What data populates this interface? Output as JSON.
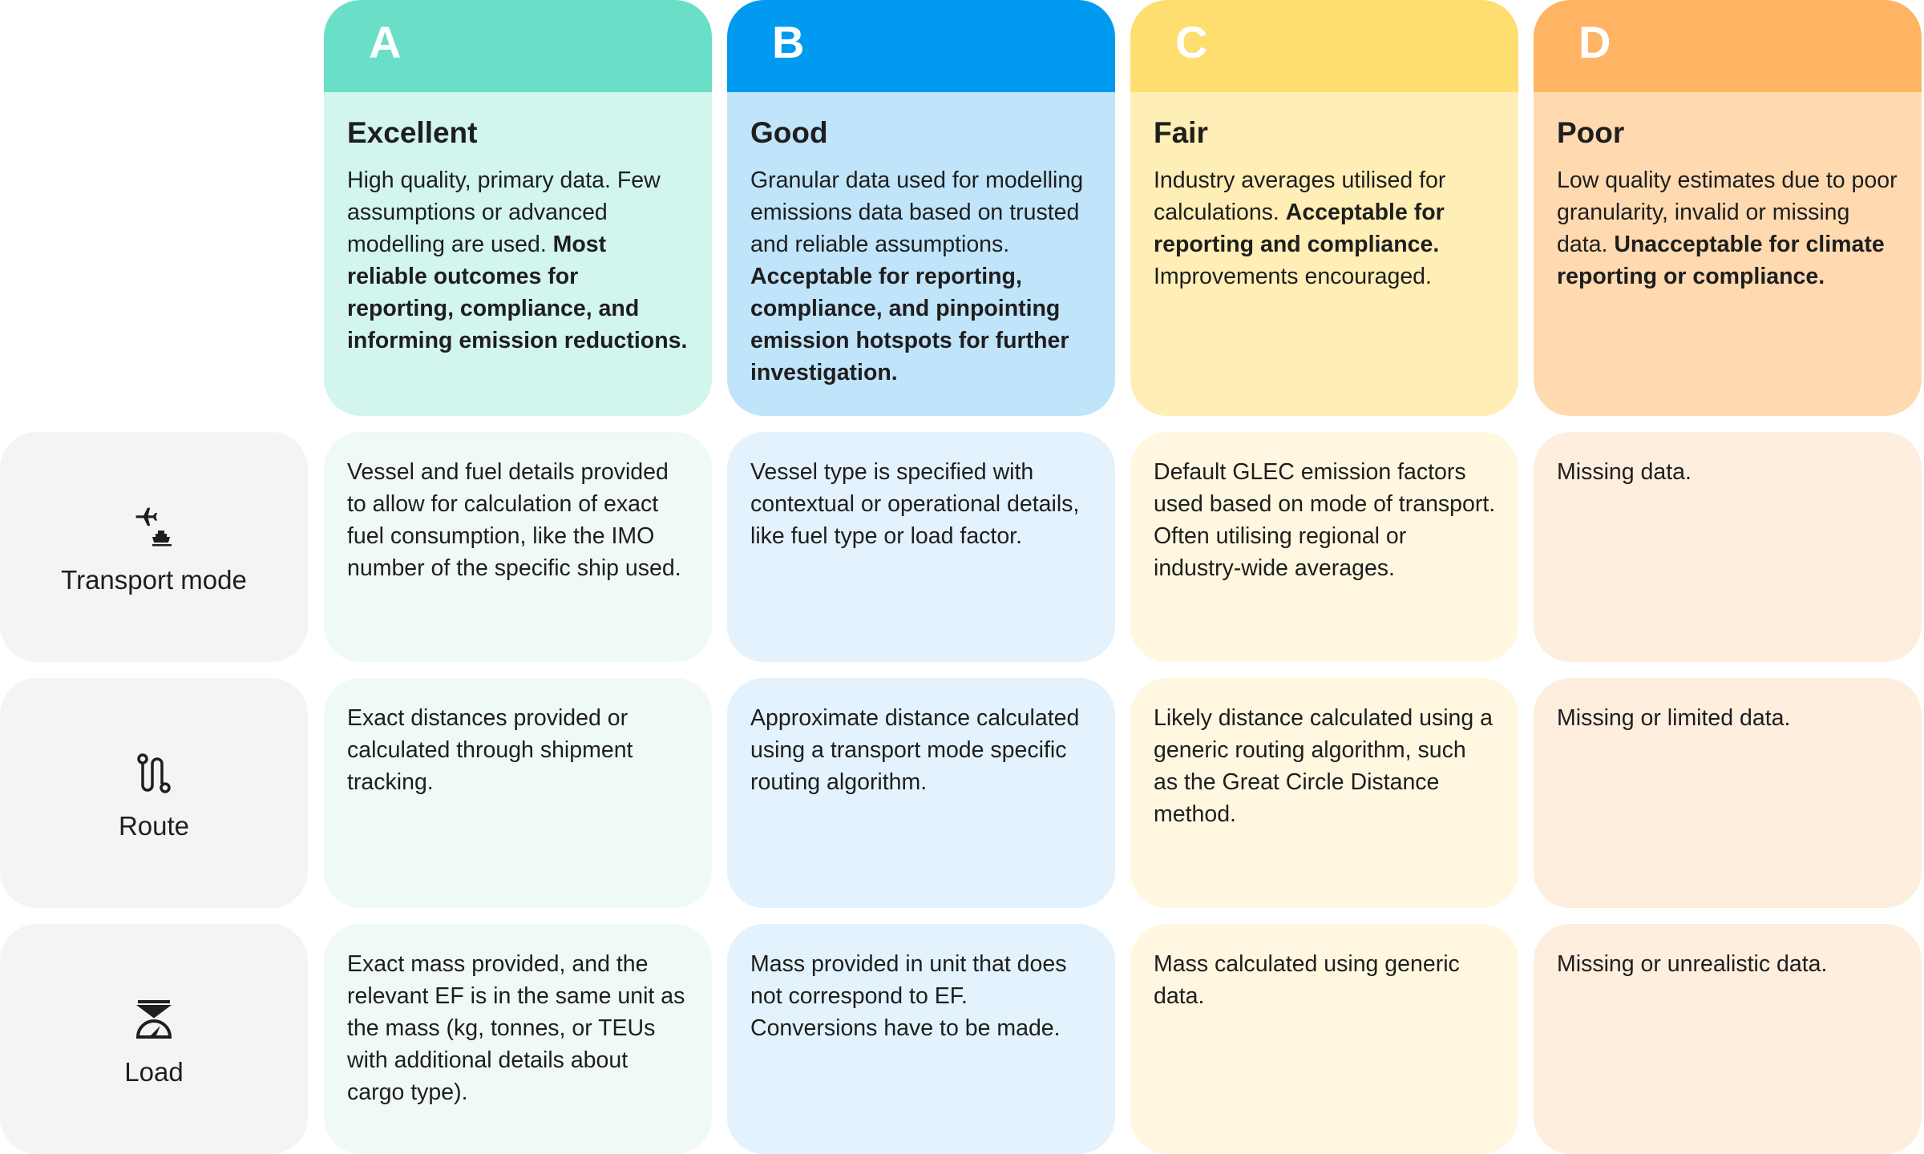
{
  "columns": [
    {
      "letter": "A",
      "title": "Excellent",
      "text": "High quality, primary data. Few assumptions or advanced modelling are used. ",
      "bold": "Most reliable outcomes for reporting, compliance, and informing emission reductions.",
      "after": "",
      "band": "#6adfc8",
      "body": "#d2f5ee",
      "cell": "#eff9f7"
    },
    {
      "letter": "B",
      "title": "Good",
      "text": "Granular data used for modelling emissions data based on trusted and reliable assumptions. ",
      "bold": "Acceptable for reporting, compliance, and pinpointing emission hotspots for further investigation.",
      "after": "",
      "band": "#009bf0",
      "body": "#c0e4fa",
      "cell": "#e3f2fc"
    },
    {
      "letter": "C",
      "title": "Fair",
      "text": "Industry averages utilised for calculations. ",
      "bold": "Acceptable for reporting and compliance.",
      "after": " Improvements encouraged.",
      "band": "#ffde70",
      "body": "#ffeeb5",
      "cell": "#fff7e0"
    },
    {
      "letter": "D",
      "title": "Poor",
      "text": "Low quality estimates due to poor granularity, invalid or missing data. ",
      "bold": "Unacceptable for climate reporting or compliance.",
      "after": "",
      "band": "#ffb463",
      "body": "#ffdab0",
      "cell": "#fdeede"
    }
  ],
  "rows": [
    {
      "label": "Transport mode",
      "icon": "plane-ship-icon",
      "cells": [
        "Vessel and fuel details provided to allow for calculation of exact fuel consumption, like the IMO number of the specific ship used.",
        "Vessel type is specified with contextual or operational details, like fuel type or load factor.",
        "Default GLEC emission factors used based on mode of transport. Often utilising regional or industry-wide averages.",
        "Missing data."
      ]
    },
    {
      "label": "Route",
      "icon": "route-icon",
      "cells": [
        "Exact distances provided or calculated through shipment tracking.",
        "Approximate distance calculated using a transport mode specific routing algorithm.",
        "Likely distance calculated using a generic routing algorithm, such as the Great Circle Distance method.",
        "Missing or limited data."
      ]
    },
    {
      "label": "Load",
      "icon": "scale-icon",
      "cells": [
        "Exact mass provided, and the relevant EF is in the same unit as the mass (kg, tonnes, or TEUs with additional details about cargo type).",
        "Mass provided in unit that does not correspond to EF. Conversions have to be made.",
        "Mass calculated using generic data.",
        "Missing or unrealistic data."
      ]
    }
  ]
}
